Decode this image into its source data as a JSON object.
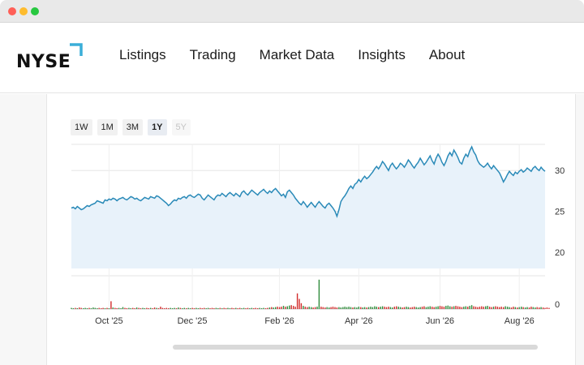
{
  "nav": {
    "logo": "NYSE",
    "items": [
      "Listings",
      "Trading",
      "Market Data",
      "Insights",
      "About"
    ]
  },
  "range_tabs": [
    {
      "label": "1W",
      "state": "normal"
    },
    {
      "label": "1M",
      "state": "normal"
    },
    {
      "label": "3M",
      "state": "normal"
    },
    {
      "label": "1Y",
      "state": "active"
    },
    {
      "label": "5Y",
      "state": "disabled"
    }
  ],
  "colors": {
    "accent": "#3aaed8",
    "line": "#2a8ab8",
    "area": "#e8f2fa",
    "vol_up": "#2e8b3a",
    "vol_down": "#d22b2b"
  },
  "chart_data": {
    "type": "line",
    "price_axis": {
      "ticks": [
        20,
        25,
        30
      ],
      "ylim": [
        18,
        33.2
      ]
    },
    "volume_axis": {
      "ticks": [
        0
      ]
    },
    "x_ticks": [
      "Oct '25",
      "Dec '25",
      "Feb '26",
      "Apr '26",
      "Jun '26",
      "Aug '26"
    ],
    "x_tick_index": [
      19,
      61,
      105,
      145,
      186,
      226
    ],
    "series": [
      {
        "values": [
          25.4,
          25.5,
          25.3,
          25.6,
          25.4,
          25.2,
          25.3,
          25.5,
          25.7,
          25.6,
          25.8,
          25.9,
          26.0,
          26.3,
          26.2,
          26.1,
          26.0,
          26.4,
          26.3,
          26.5,
          26.4,
          26.6,
          26.5,
          26.3,
          26.5,
          26.6,
          26.7,
          26.5,
          26.4,
          26.6,
          26.8,
          26.7,
          26.5,
          26.6,
          26.4,
          26.3,
          26.5,
          26.7,
          26.6,
          26.5,
          26.8,
          26.7,
          26.6,
          26.9,
          26.8,
          26.6,
          26.4,
          26.2,
          26.0,
          25.7,
          25.9,
          26.2,
          26.4,
          26.3,
          26.6,
          26.5,
          26.7,
          26.8,
          26.6,
          26.9,
          27.0,
          26.8,
          26.7,
          26.9,
          27.1,
          27.0,
          26.6,
          26.4,
          26.7,
          27.0,
          26.8,
          26.6,
          26.4,
          26.8,
          27.0,
          26.9,
          27.2,
          27.0,
          26.8,
          27.1,
          27.3,
          27.1,
          26.9,
          27.2,
          27.0,
          26.8,
          27.3,
          27.5,
          27.2,
          27.0,
          27.3,
          27.6,
          27.4,
          27.2,
          27.0,
          27.3,
          27.5,
          27.7,
          27.4,
          27.2,
          27.5,
          27.3,
          27.6,
          27.8,
          27.5,
          27.2,
          26.9,
          27.1,
          26.7,
          27.4,
          27.6,
          27.3,
          27.0,
          26.6,
          26.3,
          26.0,
          25.8,
          26.2,
          25.9,
          25.5,
          25.8,
          26.1,
          25.8,
          25.5,
          25.9,
          26.2,
          25.9,
          25.6,
          25.4,
          25.8,
          26.0,
          25.7,
          25.4,
          25.0,
          24.4,
          25.2,
          26.2,
          26.6,
          26.9,
          27.3,
          27.8,
          28.1,
          27.8,
          28.3,
          28.5,
          28.9,
          28.6,
          29.0,
          29.3,
          29.0,
          29.2,
          29.5,
          29.8,
          30.2,
          30.5,
          30.2,
          30.6,
          31.1,
          30.8,
          30.4,
          30.0,
          30.6,
          30.9,
          30.5,
          30.2,
          30.5,
          30.9,
          30.7,
          30.4,
          30.8,
          31.3,
          31.0,
          30.6,
          30.3,
          30.7,
          31.0,
          31.5,
          31.1,
          30.7,
          31.0,
          31.4,
          31.8,
          31.2,
          30.8,
          31.5,
          32.0,
          31.6,
          31.0,
          30.6,
          31.1,
          31.8,
          32.2,
          31.8,
          32.5,
          32.1,
          31.6,
          31.0,
          30.8,
          31.5,
          32.0,
          31.7,
          32.4,
          32.9,
          32.3,
          31.9,
          31.2,
          30.8,
          30.6,
          30.4,
          30.6,
          30.9,
          30.5,
          30.2,
          30.6,
          30.3,
          30.0,
          29.7,
          29.2,
          28.6,
          29.0,
          29.5,
          29.9,
          29.6,
          29.4,
          29.8,
          29.6,
          29.9,
          30.1,
          29.8,
          30.0,
          30.3,
          30.1,
          29.9,
          30.3,
          30.5,
          30.2,
          30.0,
          30.4,
          30.1,
          29.9
        ]
      }
    ],
    "volume": {
      "values": [
        0.3,
        0.2,
        0.3,
        0.2,
        0.4,
        0.3,
        0.2,
        0.3,
        0.2,
        0.3,
        0.2,
        0.4,
        0.3,
        0.2,
        0.3,
        0.2,
        0.3,
        0.2,
        0.3,
        0.2,
        2.0,
        0.4,
        0.3,
        0.2,
        0.3,
        0.2,
        0.5,
        0.3,
        0.2,
        0.3,
        0.2,
        0.3,
        0.2,
        0.4,
        0.3,
        0.2,
        0.3,
        0.2,
        0.3,
        0.2,
        0.3,
        0.2,
        0.4,
        0.3,
        0.2,
        0.6,
        0.3,
        0.2,
        0.3,
        0.2,
        0.3,
        0.2,
        0.3,
        0.2,
        0.4,
        0.3,
        0.2,
        0.3,
        0.2,
        0.3,
        0.2,
        0.3,
        0.2,
        0.3,
        0.2,
        0.3,
        0.2,
        0.3,
        0.2,
        0.3,
        0.2,
        0.3,
        0.2,
        0.3,
        0.2,
        0.3,
        0.2,
        0.3,
        0.2,
        0.3,
        0.2,
        0.3,
        0.2,
        0.3,
        0.2,
        0.3,
        0.2,
        0.3,
        0.2,
        0.3,
        0.2,
        0.3,
        0.2,
        0.3,
        0.2,
        0.3,
        0.2,
        0.3,
        0.2,
        0.3,
        0.4,
        0.5,
        0.4,
        0.5,
        0.6,
        0.5,
        0.6,
        0.8,
        0.6,
        0.7,
        0.9,
        1.0,
        0.8,
        0.6,
        4.0,
        2.6,
        1.5,
        0.8,
        0.6,
        0.5,
        0.6,
        0.5,
        0.4,
        0.5,
        0.6,
        7.5,
        0.6,
        0.5,
        0.4,
        0.5,
        0.4,
        0.5,
        0.6,
        0.5,
        0.4,
        0.5,
        0.4,
        0.5,
        0.6,
        0.5,
        0.6,
        0.5,
        0.4,
        0.5,
        0.4,
        0.6,
        0.5,
        0.4,
        0.5,
        0.4,
        0.5,
        0.6,
        0.5,
        0.7,
        0.6,
        0.5,
        0.6,
        0.7,
        0.6,
        0.5,
        0.6,
        0.5,
        0.4,
        0.6,
        0.7,
        0.6,
        0.5,
        0.4,
        0.5,
        0.6,
        0.5,
        0.4,
        0.5,
        0.6,
        0.5,
        0.4,
        0.5,
        0.6,
        0.7,
        0.5,
        0.6,
        0.7,
        0.6,
        0.5,
        0.6,
        0.7,
        0.8,
        0.7,
        0.6,
        0.8,
        0.9,
        0.7,
        0.6,
        0.7,
        0.8,
        0.7,
        0.6,
        0.5,
        0.6,
        0.7,
        0.6,
        0.8,
        1.0,
        0.7,
        0.6,
        0.5,
        0.6,
        0.7,
        0.6,
        0.7,
        0.8,
        0.6,
        0.5,
        0.6,
        0.7,
        0.6,
        0.5,
        0.6,
        0.5,
        0.7,
        0.6,
        0.5,
        0.4,
        0.6,
        0.5,
        0.4,
        0.5,
        0.6,
        0.5,
        0.4,
        0.5,
        0.4,
        0.6,
        0.5,
        0.4,
        0.5,
        0.4,
        0.5,
        0.4,
        0.3,
        0.4,
        0.3
      ],
      "vlim": [
        0,
        8.5
      ]
    }
  }
}
